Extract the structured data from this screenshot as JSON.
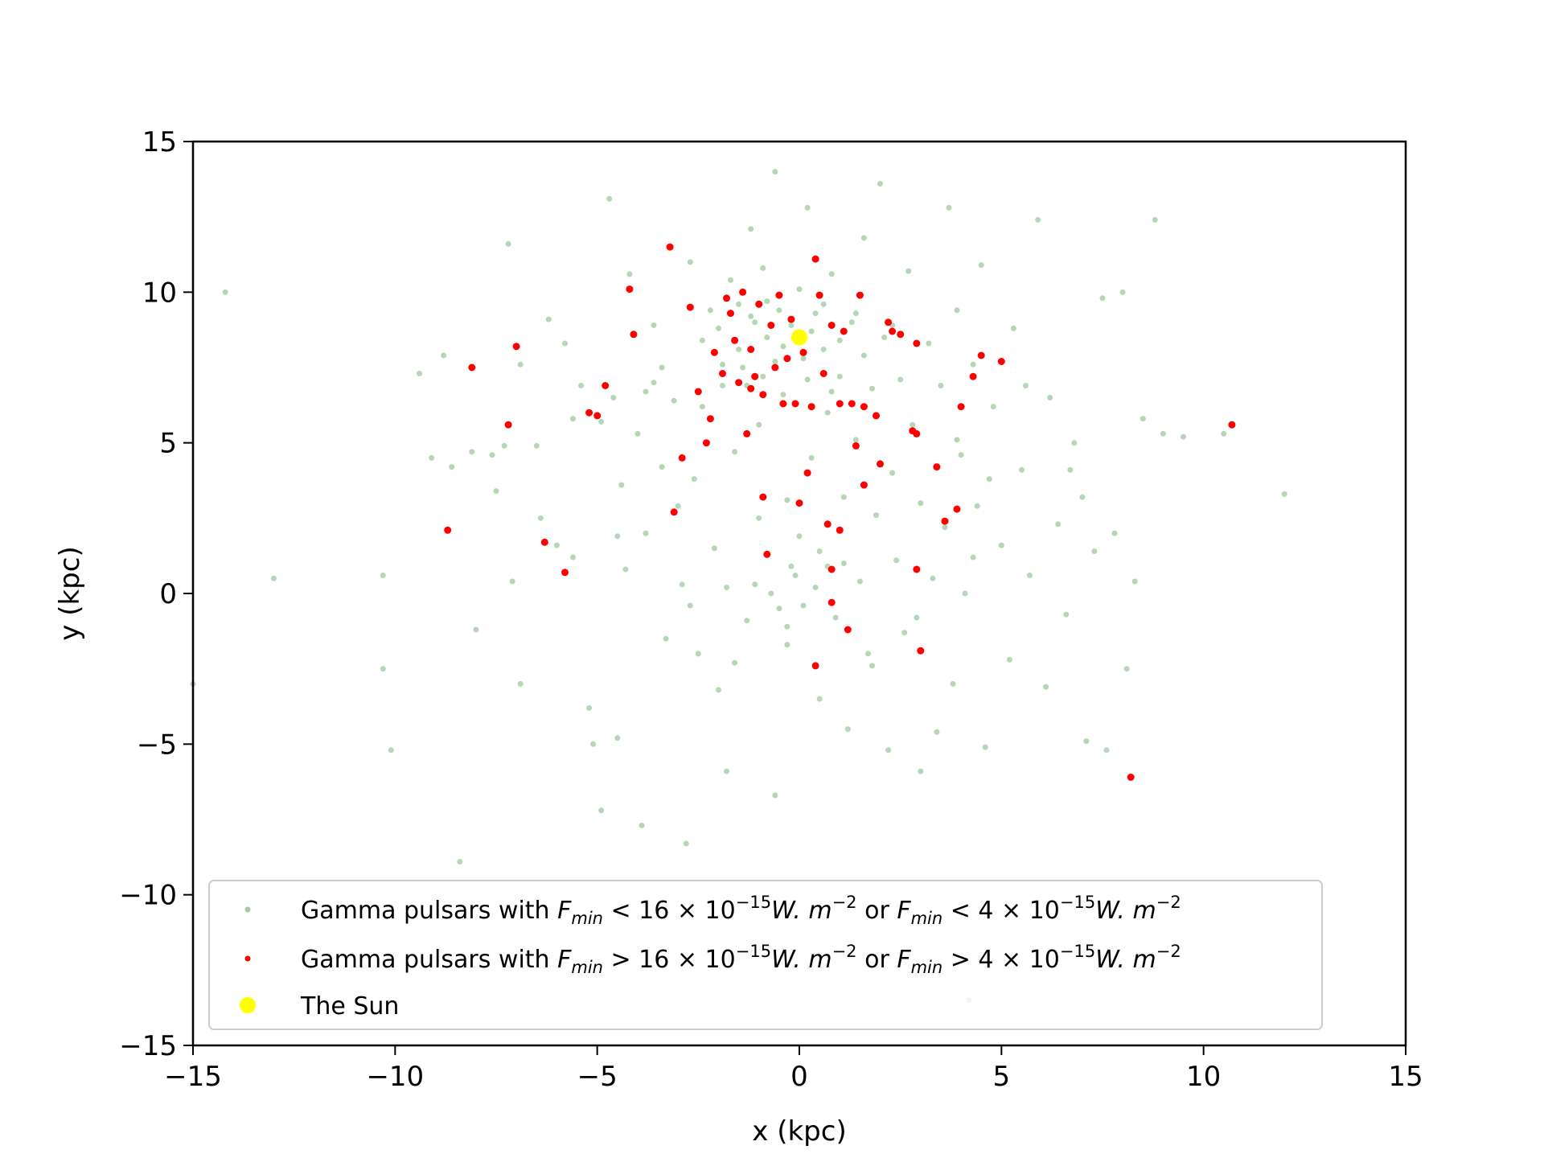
{
  "chart_data": {
    "type": "scatter",
    "xlabel": "x (kpc)",
    "ylabel": "y (kpc)",
    "xlim": [
      -15,
      15
    ],
    "ylim": [
      -15,
      15
    ],
    "xticks": [
      -15,
      -10,
      -5,
      0,
      5,
      10,
      15
    ],
    "yticks": [
      -15,
      -10,
      -5,
      0,
      5,
      10,
      15
    ],
    "xtick_labels": [
      "−15",
      "−10",
      "−5",
      "0",
      "5",
      "10",
      "15"
    ],
    "ytick_labels": [
      "−15",
      "−10",
      "−5",
      "0",
      "5",
      "10",
      "15"
    ],
    "grid": false,
    "legend_position": "lower-center",
    "colors": {
      "faint": "#2e8b2e",
      "bright": "#ff0000",
      "sun": "#ffff00"
    },
    "series": [
      {
        "name": "Gamma pulsars with F_min < 16 × 10^-15 W.m^-2 or F_min < 4 × 10^-15 W.m^-2",
        "legend": {
          "lead": "Gamma pulsars with ",
          "f1": "F",
          "sub1": "min",
          "rel1": " < 16 × 10",
          "exp1": "−15",
          "unit1": "W. m",
          "uexp1": "−2",
          "mid": " or ",
          "f2": "F",
          "sub2": "min",
          "rel2": " < 4 × 10",
          "exp2": "−15",
          "unit2": "W. m",
          "uexp2": "−2"
        },
        "color": "#2e8b2e",
        "points": [
          [
            -14.2,
            10.0
          ],
          [
            -13.0,
            0.5
          ],
          [
            -10.3,
            0.6
          ],
          [
            -10.3,
            -2.5
          ],
          [
            -10.1,
            -5.2
          ],
          [
            -9.4,
            7.3
          ],
          [
            -9.1,
            4.5
          ],
          [
            -8.8,
            7.9
          ],
          [
            -8.6,
            4.2
          ],
          [
            -8.4,
            -8.9
          ],
          [
            -8.1,
            4.7
          ],
          [
            -8.0,
            -1.2
          ],
          [
            -7.6,
            4.6
          ],
          [
            -7.3,
            4.9
          ],
          [
            -7.2,
            11.6
          ],
          [
            -7.1,
            0.4
          ],
          [
            -6.9,
            7.6
          ],
          [
            -6.9,
            -3.0
          ],
          [
            -6.5,
            4.9
          ],
          [
            -6.2,
            9.1
          ],
          [
            -6.0,
            1.6
          ],
          [
            -5.8,
            8.3
          ],
          [
            -5.6,
            5.8
          ],
          [
            -5.4,
            6.9
          ],
          [
            -5.2,
            -3.8
          ],
          [
            -5.1,
            -5.0
          ],
          [
            -4.9,
            -7.2
          ],
          [
            -4.7,
            13.1
          ],
          [
            -4.6,
            6.5
          ],
          [
            -4.5,
            -4.8
          ],
          [
            -4.4,
            3.6
          ],
          [
            -4.3,
            0.8
          ],
          [
            -4.2,
            10.6
          ],
          [
            -4.0,
            5.3
          ],
          [
            -3.9,
            -7.7
          ],
          [
            -3.8,
            2.0
          ],
          [
            -3.6,
            8.9
          ],
          [
            -3.6,
            7.0
          ],
          [
            -3.4,
            4.2
          ],
          [
            -3.3,
            -1.5
          ],
          [
            -3.1,
            6.4
          ],
          [
            -3.0,
            2.9
          ],
          [
            -2.9,
            0.3
          ],
          [
            -2.8,
            -8.3
          ],
          [
            -2.7,
            11.0
          ],
          [
            -2.6,
            3.8
          ],
          [
            -2.5,
            -2.0
          ],
          [
            -2.4,
            6.2
          ],
          [
            -2.2,
            9.4
          ],
          [
            -2.1,
            1.5
          ],
          [
            -2.0,
            8.8
          ],
          [
            -2.0,
            -3.2
          ],
          [
            -1.9,
            6.9
          ],
          [
            -1.8,
            0.2
          ],
          [
            -1.8,
            -5.9
          ],
          [
            -1.7,
            10.4
          ],
          [
            -1.6,
            4.7
          ],
          [
            -1.5,
            8.1
          ],
          [
            -1.4,
            7.5
          ],
          [
            -1.3,
            -0.9
          ],
          [
            -1.2,
            12.1
          ],
          [
            -1.1,
            9.0
          ],
          [
            -1.0,
            5.6
          ],
          [
            -1.0,
            2.5
          ],
          [
            -0.9,
            10.8
          ],
          [
            -0.9,
            7.2
          ],
          [
            -0.8,
            8.5
          ],
          [
            -0.7,
            0.0
          ],
          [
            -0.6,
            -6.7
          ],
          [
            -0.6,
            14.0
          ],
          [
            -0.5,
            9.4
          ],
          [
            -0.4,
            6.6
          ],
          [
            -0.3,
            3.1
          ],
          [
            -0.3,
            -1.7
          ],
          [
            -0.2,
            8.9
          ],
          [
            -0.1,
            0.6
          ],
          [
            0.0,
            10.1
          ],
          [
            0.1,
            7.8
          ],
          [
            0.1,
            -0.4
          ],
          [
            0.2,
            12.8
          ],
          [
            0.3,
            4.5
          ],
          [
            0.4,
            9.3
          ],
          [
            0.5,
            1.4
          ],
          [
            0.5,
            -3.5
          ],
          [
            0.6,
            8.1
          ],
          [
            0.7,
            6.0
          ],
          [
            0.8,
            10.6
          ],
          [
            0.9,
            -0.8
          ],
          [
            1.0,
            7.2
          ],
          [
            1.1,
            3.2
          ],
          [
            1.2,
            -4.5
          ],
          [
            1.3,
            9.0
          ],
          [
            1.4,
            5.1
          ],
          [
            1.5,
            0.4
          ],
          [
            1.6,
            11.8
          ],
          [
            1.7,
            -2.0
          ],
          [
            1.8,
            6.8
          ],
          [
            1.9,
            2.6
          ],
          [
            2.0,
            13.6
          ],
          [
            2.1,
            8.5
          ],
          [
            2.2,
            -5.2
          ],
          [
            2.3,
            4.0
          ],
          [
            2.4,
            1.1
          ],
          [
            2.5,
            7.1
          ],
          [
            2.6,
            -1.3
          ],
          [
            2.7,
            10.7
          ],
          [
            2.8,
            5.6
          ],
          [
            3.0,
            3.0
          ],
          [
            3.0,
            -5.9
          ],
          [
            3.2,
            8.3
          ],
          [
            3.3,
            0.5
          ],
          [
            3.4,
            -4.6
          ],
          [
            3.5,
            6.9
          ],
          [
            3.6,
            2.2
          ],
          [
            3.7,
            12.8
          ],
          [
            3.8,
            -3.0
          ],
          [
            3.9,
            9.4
          ],
          [
            4.0,
            4.6
          ],
          [
            4.1,
            0.0
          ],
          [
            4.2,
            -13.5
          ],
          [
            4.3,
            7.6
          ],
          [
            4.4,
            2.9
          ],
          [
            4.5,
            10.9
          ],
          [
            4.6,
            -5.1
          ],
          [
            4.8,
            6.2
          ],
          [
            5.0,
            1.6
          ],
          [
            5.2,
            -2.2
          ],
          [
            5.3,
            8.8
          ],
          [
            5.5,
            4.1
          ],
          [
            5.7,
            0.6
          ],
          [
            5.9,
            12.4
          ],
          [
            6.1,
            -3.1
          ],
          [
            6.2,
            6.5
          ],
          [
            6.4,
            2.3
          ],
          [
            6.6,
            -0.7
          ],
          [
            6.8,
            5.0
          ],
          [
            7.0,
            3.2
          ],
          [
            7.1,
            -4.9
          ],
          [
            7.3,
            1.4
          ],
          [
            7.5,
            9.8
          ],
          [
            7.6,
            -5.2
          ],
          [
            7.8,
            2.0
          ],
          [
            8.0,
            10.0
          ],
          [
            8.1,
            -2.5
          ],
          [
            8.3,
            0.4
          ],
          [
            8.5,
            5.8
          ],
          [
            8.8,
            12.4
          ],
          [
            9.0,
            5.3
          ],
          [
            9.5,
            5.2
          ],
          [
            10.5,
            5.3
          ],
          [
            12.0,
            3.3
          ],
          [
            -15.0,
            -3.0
          ],
          [
            -1.5,
            9.6
          ],
          [
            -1.2,
            9.2
          ],
          [
            -0.8,
            9.7
          ],
          [
            -0.4,
            8.2
          ],
          [
            0.3,
            8.7
          ],
          [
            0.6,
            9.6
          ],
          [
            1.0,
            8.4
          ],
          [
            1.4,
            9.3
          ],
          [
            -1.9,
            7.6
          ],
          [
            -1.3,
            6.9
          ],
          [
            -0.6,
            7.7
          ],
          [
            0.2,
            7.1
          ],
          [
            0.8,
            6.7
          ],
          [
            1.6,
            7.9
          ],
          [
            2.3,
            8.9
          ],
          [
            -2.4,
            8.4
          ],
          [
            -0.2,
            0.9
          ],
          [
            0.4,
            0.2
          ],
          [
            -0.5,
            -0.5
          ],
          [
            0.7,
            0.9
          ],
          [
            -1.1,
            0.3
          ],
          [
            0.0,
            1.9
          ],
          [
            1.1,
            1.0
          ],
          [
            -0.3,
            -1.1
          ],
          [
            -3.4,
            7.5
          ],
          [
            -3.8,
            6.7
          ],
          [
            -4.9,
            5.7
          ],
          [
            -5.6,
            1.2
          ],
          [
            -6.4,
            2.5
          ],
          [
            -7.5,
            3.4
          ],
          [
            3.9,
            5.1
          ],
          [
            4.7,
            3.8
          ],
          [
            5.6,
            6.9
          ],
          [
            6.7,
            4.1
          ],
          [
            -2.7,
            -0.4
          ],
          [
            -1.6,
            -2.3
          ],
          [
            1.8,
            -2.4
          ],
          [
            2.9,
            -0.8
          ],
          [
            -4.5,
            1.9
          ],
          [
            4.3,
            1.2
          ]
        ]
      },
      {
        "name": "Gamma pulsars with F_min > 16 × 10^-15 W.m^-2 or F_min > 4 × 10^-15 W.m^-2",
        "legend": {
          "lead": "Gamma pulsars with ",
          "f1": "F",
          "sub1": "min",
          "rel1": " > 16 × 10",
          "exp1": "−15",
          "unit1": "W. m",
          "uexp1": "−2",
          "mid": " or ",
          "f2": "F",
          "sub2": "min",
          "rel2": " > 4 × 10",
          "exp2": "−15",
          "unit2": "W. m",
          "uexp2": "−2"
        },
        "color": "#ff0000",
        "points": [
          [
            -8.1,
            7.5
          ],
          [
            -8.7,
            2.1
          ],
          [
            -7.2,
            5.6
          ],
          [
            -7.0,
            8.2
          ],
          [
            -6.3,
            1.7
          ],
          [
            -5.8,
            0.7
          ],
          [
            -5.2,
            6.0
          ],
          [
            -5.0,
            5.9
          ],
          [
            -4.8,
            6.9
          ],
          [
            -4.2,
            10.1
          ],
          [
            -4.1,
            8.6
          ],
          [
            -3.2,
            11.5
          ],
          [
            -3.1,
            2.7
          ],
          [
            -2.9,
            4.5
          ],
          [
            -2.7,
            9.5
          ],
          [
            -2.5,
            6.7
          ],
          [
            -2.3,
            5.0
          ],
          [
            -2.2,
            5.8
          ],
          [
            -2.1,
            8.0
          ],
          [
            -1.9,
            7.3
          ],
          [
            -1.8,
            9.8
          ],
          [
            -1.7,
            9.3
          ],
          [
            -1.6,
            8.4
          ],
          [
            -1.5,
            7.0
          ],
          [
            -1.4,
            10.0
          ],
          [
            -1.3,
            5.3
          ],
          [
            -1.2,
            8.1
          ],
          [
            -1.1,
            7.2
          ],
          [
            -1.0,
            9.6
          ],
          [
            -0.9,
            3.2
          ],
          [
            -0.9,
            6.6
          ],
          [
            -0.8,
            1.3
          ],
          [
            -0.7,
            8.9
          ],
          [
            -0.6,
            7.5
          ],
          [
            -0.5,
            9.9
          ],
          [
            -0.4,
            6.3
          ],
          [
            -0.3,
            7.8
          ],
          [
            -0.2,
            9.1
          ],
          [
            -0.1,
            6.3
          ],
          [
            0.0,
            3.0
          ],
          [
            0.1,
            8.0
          ],
          [
            0.2,
            4.0
          ],
          [
            0.3,
            6.2
          ],
          [
            0.4,
            11.1
          ],
          [
            0.4,
            -2.4
          ],
          [
            0.5,
            9.9
          ],
          [
            0.6,
            7.3
          ],
          [
            0.7,
            2.3
          ],
          [
            0.8,
            8.9
          ],
          [
            0.8,
            0.8
          ],
          [
            0.8,
            -0.3
          ],
          [
            1.0,
            6.3
          ],
          [
            1.0,
            2.1
          ],
          [
            1.1,
            8.7
          ],
          [
            1.2,
            -1.2
          ],
          [
            1.3,
            6.3
          ],
          [
            1.4,
            4.9
          ],
          [
            1.5,
            9.9
          ],
          [
            1.6,
            3.6
          ],
          [
            1.6,
            6.2
          ],
          [
            1.9,
            5.9
          ],
          [
            2.0,
            4.3
          ],
          [
            2.2,
            9.0
          ],
          [
            2.3,
            8.7
          ],
          [
            2.5,
            8.6
          ],
          [
            2.8,
            5.4
          ],
          [
            2.9,
            5.3
          ],
          [
            2.9,
            8.3
          ],
          [
            2.9,
            0.8
          ],
          [
            3.0,
            -1.9
          ],
          [
            3.4,
            4.2
          ],
          [
            3.6,
            2.4
          ],
          [
            3.9,
            2.8
          ],
          [
            4.0,
            6.2
          ],
          [
            4.3,
            7.2
          ],
          [
            4.5,
            7.9
          ],
          [
            5.0,
            7.7
          ],
          [
            8.2,
            -6.1
          ],
          [
            10.7,
            5.6
          ],
          [
            -1.2,
            6.8
          ]
        ]
      },
      {
        "name": "The Sun",
        "legend": {
          "lead": "The Sun"
        },
        "color": "#ffff00",
        "points": [
          [
            0.0,
            8.5
          ]
        ]
      }
    ]
  }
}
